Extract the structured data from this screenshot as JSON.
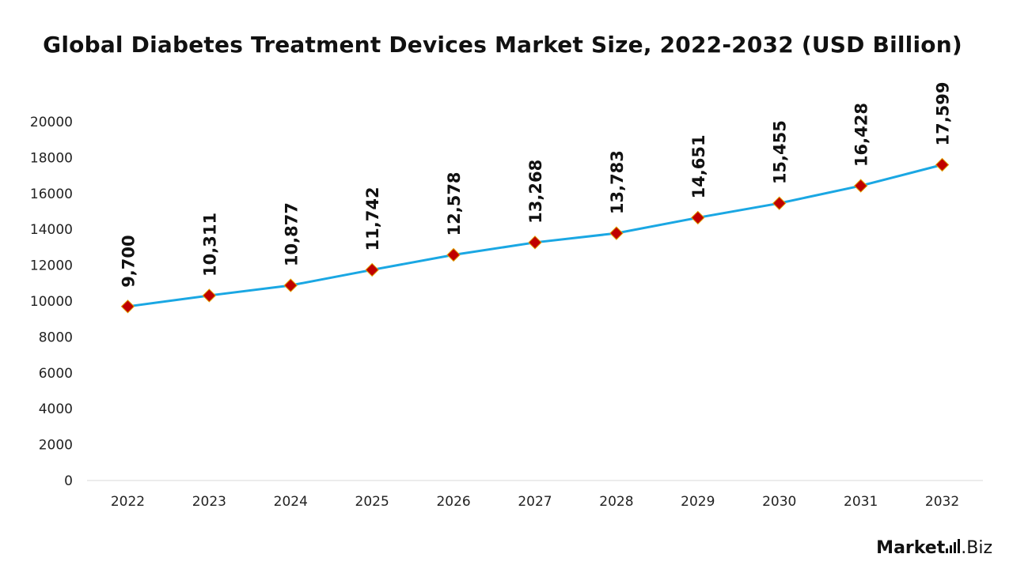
{
  "chart_data": {
    "type": "line",
    "title": "Global Diabetes Treatment Devices Market Size, 2022-2032 (USD Billion)",
    "xlabel": "",
    "ylabel": "",
    "categories": [
      "2022",
      "2023",
      "2024",
      "2025",
      "2026",
      "2027",
      "2028",
      "2029",
      "2030",
      "2031",
      "2032"
    ],
    "values": [
      9700,
      10311,
      10877,
      11742,
      12578,
      13268,
      13783,
      14651,
      15455,
      16428,
      17599
    ],
    "data_labels": [
      "9,700",
      "10,311",
      "10,877",
      "11,742",
      "12,578",
      "13,268",
      "13,783",
      "14,651",
      "15,455",
      "16,428",
      "17,599"
    ],
    "ylim": [
      0,
      20000
    ],
    "yticks": [
      "0",
      "2000",
      "4000",
      "6000",
      "8000",
      "10000",
      "12000",
      "14000",
      "16000",
      "18000",
      "20000"
    ],
    "grid": false,
    "legend": "none",
    "line_color": "#1aa7e3",
    "marker_color": "#c00000",
    "marker_edge_color": "#e0a000"
  },
  "brand": {
    "name": "Market",
    "suffix": ".Biz"
  }
}
